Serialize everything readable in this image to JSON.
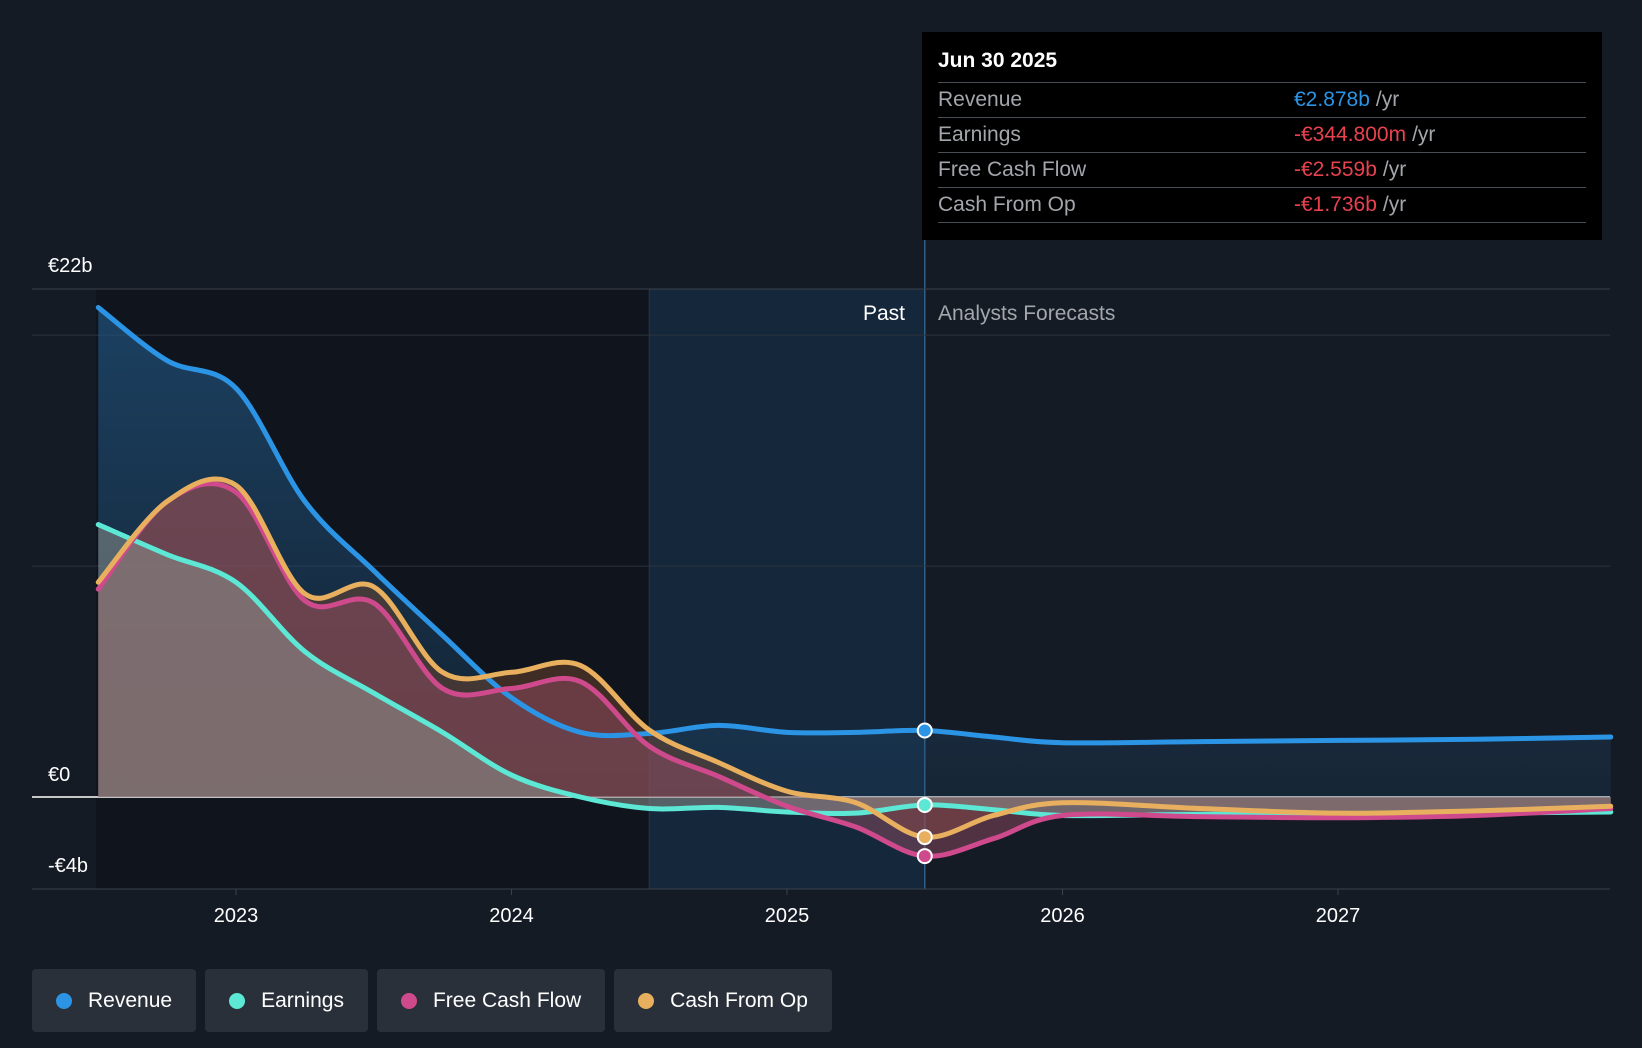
{
  "chart_data": {
    "type": "area",
    "y_axis": {
      "top_label": "€22b",
      "zero_label": "€0",
      "bottom_label": "-€4b",
      "ylim": [
        -4,
        22
      ]
    },
    "x_axis": {
      "ticks": [
        "2023",
        "2024",
        "2025",
        "2026",
        "2027"
      ]
    },
    "regions": {
      "past_label": "Past",
      "forecast_label": "Analysts Forecasts"
    },
    "series": [
      {
        "name": "Revenue",
        "color": "#2b94e5",
        "points": [
          [
            2022.5,
            21.2
          ],
          [
            2022.75,
            18.9
          ],
          [
            2023.0,
            17.7
          ],
          [
            2023.25,
            12.8
          ],
          [
            2023.5,
            9.8
          ],
          [
            2023.75,
            7.0
          ],
          [
            2024.0,
            4.3
          ],
          [
            2024.25,
            2.8
          ],
          [
            2024.5,
            2.75
          ],
          [
            2024.75,
            3.1
          ],
          [
            2025.0,
            2.8
          ],
          [
            2025.25,
            2.8
          ],
          [
            2025.5,
            2.88
          ],
          [
            2025.75,
            2.6
          ],
          [
            2026.0,
            2.35
          ],
          [
            2026.5,
            2.4
          ],
          [
            2027.0,
            2.45
          ],
          [
            2027.5,
            2.5
          ],
          [
            2027.99,
            2.6
          ]
        ]
      },
      {
        "name": "Earnings",
        "color": "#5ce8d5",
        "points": [
          [
            2022.5,
            11.8
          ],
          [
            2022.75,
            10.5
          ],
          [
            2023.0,
            9.3
          ],
          [
            2023.25,
            6.3
          ],
          [
            2023.5,
            4.5
          ],
          [
            2023.75,
            2.8
          ],
          [
            2024.0,
            0.95
          ],
          [
            2024.25,
            0.0
          ],
          [
            2024.5,
            -0.5
          ],
          [
            2024.75,
            -0.45
          ],
          [
            2025.0,
            -0.65
          ],
          [
            2025.25,
            -0.7
          ],
          [
            2025.5,
            -0.345
          ],
          [
            2025.75,
            -0.55
          ],
          [
            2026.0,
            -0.8
          ],
          [
            2026.5,
            -0.75
          ],
          [
            2027.0,
            -0.75
          ],
          [
            2027.5,
            -0.7
          ],
          [
            2027.99,
            -0.65
          ]
        ]
      },
      {
        "name": "Free Cash Flow",
        "color": "#cf4a8c",
        "points": [
          [
            2022.5,
            9.0
          ],
          [
            2022.75,
            12.8
          ],
          [
            2023.0,
            13.2
          ],
          [
            2023.25,
            8.5
          ],
          [
            2023.5,
            8.4
          ],
          [
            2023.75,
            4.7
          ],
          [
            2024.0,
            4.7
          ],
          [
            2024.25,
            5.0
          ],
          [
            2024.5,
            2.2
          ],
          [
            2024.75,
            0.9
          ],
          [
            2025.0,
            -0.4
          ],
          [
            2025.25,
            -1.3
          ],
          [
            2025.5,
            -2.559
          ],
          [
            2025.75,
            -1.8
          ],
          [
            2026.0,
            -0.8
          ],
          [
            2026.5,
            -0.85
          ],
          [
            2027.0,
            -0.9
          ],
          [
            2027.5,
            -0.8
          ],
          [
            2027.99,
            -0.5
          ]
        ]
      },
      {
        "name": "Cash From Op",
        "color": "#e8b05e",
        "points": [
          [
            2022.5,
            9.3
          ],
          [
            2022.75,
            12.8
          ],
          [
            2023.0,
            13.5
          ],
          [
            2023.25,
            8.8
          ],
          [
            2023.5,
            9.1
          ],
          [
            2023.75,
            5.4
          ],
          [
            2024.0,
            5.4
          ],
          [
            2024.25,
            5.7
          ],
          [
            2024.5,
            2.9
          ],
          [
            2024.75,
            1.5
          ],
          [
            2025.0,
            0.25
          ],
          [
            2025.25,
            -0.25
          ],
          [
            2025.5,
            -1.736
          ],
          [
            2025.75,
            -0.8
          ],
          [
            2026.0,
            -0.25
          ],
          [
            2026.5,
            -0.5
          ],
          [
            2027.0,
            -0.7
          ],
          [
            2027.5,
            -0.6
          ],
          [
            2027.99,
            -0.4
          ]
        ]
      }
    ],
    "legend": [
      {
        "label": "Revenue",
        "color": "#2b94e5"
      },
      {
        "label": "Earnings",
        "color": "#5ce8d5"
      },
      {
        "label": "Free Cash Flow",
        "color": "#cf4a8c"
      },
      {
        "label": "Cash From Op",
        "color": "#e8b05e"
      }
    ]
  },
  "tooltip": {
    "date": "Jun 30 2025",
    "rows": [
      {
        "label": "Revenue",
        "value": "€2.878b",
        "unit": "/yr",
        "color": "#2b94e5"
      },
      {
        "label": "Earnings",
        "value": "-€344.800m",
        "unit": "/yr",
        "color": "#e8414f"
      },
      {
        "label": "Free Cash Flow",
        "value": "-€2.559b",
        "unit": "/yr",
        "color": "#e8414f"
      },
      {
        "label": "Cash From Op",
        "value": "-€1.736b",
        "unit": "/yr",
        "color": "#e8414f"
      }
    ]
  }
}
